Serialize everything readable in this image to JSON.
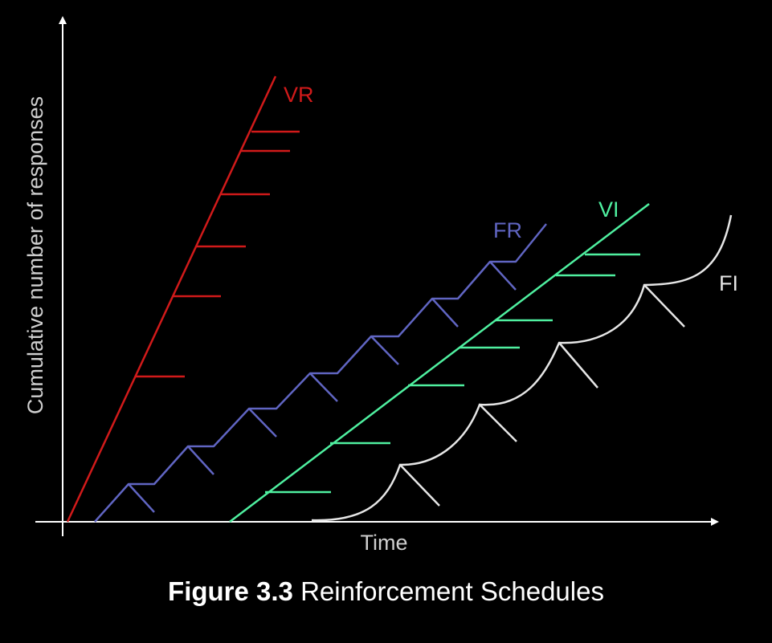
{
  "x_axis_label": "Time",
  "y_axis_label": "Cumulative number of responses",
  "caption": {
    "number": "Figure 3.3",
    "title": "Reinforcement Schedules"
  },
  "curves": {
    "vr": {
      "label": "VR",
      "color": "#d11a1a"
    },
    "fr": {
      "label": "FR",
      "color": "#6065c2"
    },
    "vi": {
      "label": "VI",
      "color": "#4ff0a0"
    },
    "fi": {
      "label": "FI",
      "color": "#e6e6e6"
    }
  },
  "colors": {
    "background": "#000000",
    "axes": "#ffffff"
  }
}
